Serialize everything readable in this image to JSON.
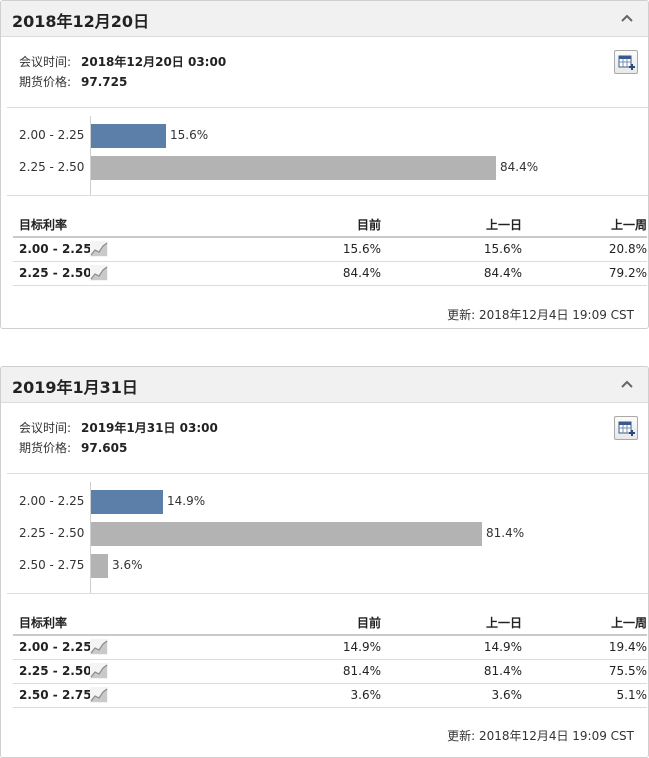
{
  "labels": {
    "meeting_time": "会议时间:",
    "futures_price": "期货价格:",
    "col_target": "目标利率",
    "col_current": "目前",
    "col_prev_day": "上一日",
    "col_prev_week": "上一周"
  },
  "colors": {
    "current_bar": "#5b7fa8",
    "other_bar": "#b3b3b3"
  },
  "icons": {
    "collapse": "chevron-up-icon",
    "calendar": "calendar-add-icon",
    "sparkline": "sparkline-icon"
  },
  "panels": [
    {
      "title": "2018年12月20日",
      "meeting_time": "2018年12月20日 03:00",
      "futures_price": "97.725",
      "chart_data": {
        "type": "bar",
        "orientation": "horizontal",
        "categories": [
          "2.00 - 2.25",
          "2.25 - 2.50"
        ],
        "values": [
          15.6,
          84.4
        ],
        "value_labels": [
          "15.6%",
          "84.4%"
        ],
        "highlight_index": 0
      },
      "rows": [
        {
          "target": "2.00 - 2.25",
          "current": "15.6%",
          "prev_day": "15.6%",
          "prev_week": "20.8%"
        },
        {
          "target": "2.25 - 2.50",
          "current": "84.4%",
          "prev_day": "84.4%",
          "prev_week": "79.2%"
        }
      ],
      "updated": "更新: 2018年12月4日 19:09 CST"
    },
    {
      "title": "2019年1月31日",
      "meeting_time": "2019年1月31日 03:00",
      "futures_price": "97.605",
      "chart_data": {
        "type": "bar",
        "orientation": "horizontal",
        "categories": [
          "2.00 - 2.25",
          "2.25 - 2.50",
          "2.50 - 2.75"
        ],
        "values": [
          14.9,
          81.4,
          3.6
        ],
        "value_labels": [
          "14.9%",
          "81.4%",
          "3.6%"
        ],
        "highlight_index": 0
      },
      "rows": [
        {
          "target": "2.00 - 2.25",
          "current": "14.9%",
          "prev_day": "14.9%",
          "prev_week": "19.4%"
        },
        {
          "target": "2.25 - 2.50",
          "current": "81.4%",
          "prev_day": "81.4%",
          "prev_week": "75.5%"
        },
        {
          "target": "2.50 - 2.75",
          "current": "3.6%",
          "prev_day": "3.6%",
          "prev_week": "5.1%"
        }
      ],
      "updated": "更新: 2018年12月4日 19:09 CST"
    }
  ]
}
